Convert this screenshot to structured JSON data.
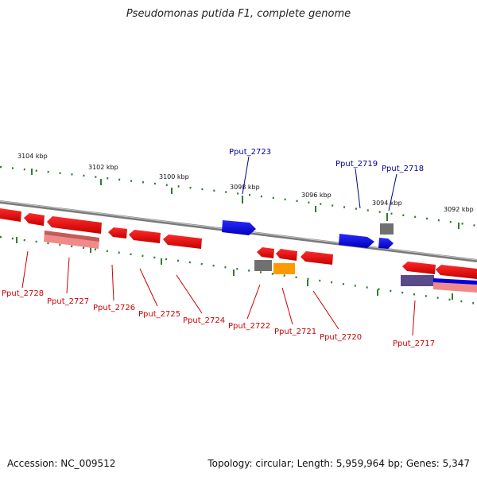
{
  "title": "Pseudomonas putida F1, complete genome",
  "footer": {
    "accession": "Accession: NC_009512",
    "summary": "Topology: circular; Length: 5,959,964 bp; Genes: 5,347"
  },
  "scale_labels": [
    "3104 kbp",
    "3102 kbp",
    "3100 kbp",
    "3098 kbp",
    "3096 kbp",
    "3094 kbp",
    "3092 kbp"
  ],
  "genes_forward": [
    "Pput_2723",
    "Pput_2719",
    "Pput_2718"
  ],
  "genes_reverse": [
    "Pput_2728",
    "Pput_2727",
    "Pput_2726",
    "Pput_2725",
    "Pput_2724",
    "Pput_2722",
    "Pput_2721",
    "Pput_2720",
    "Pput_2717"
  ],
  "colors": {
    "forward_cds": "#0000ff",
    "reverse_cds": "#ff0000",
    "backbone": "#888888",
    "tick": "#007700",
    "forward_label": "#000099",
    "reverse_label": "#cc0000"
  }
}
